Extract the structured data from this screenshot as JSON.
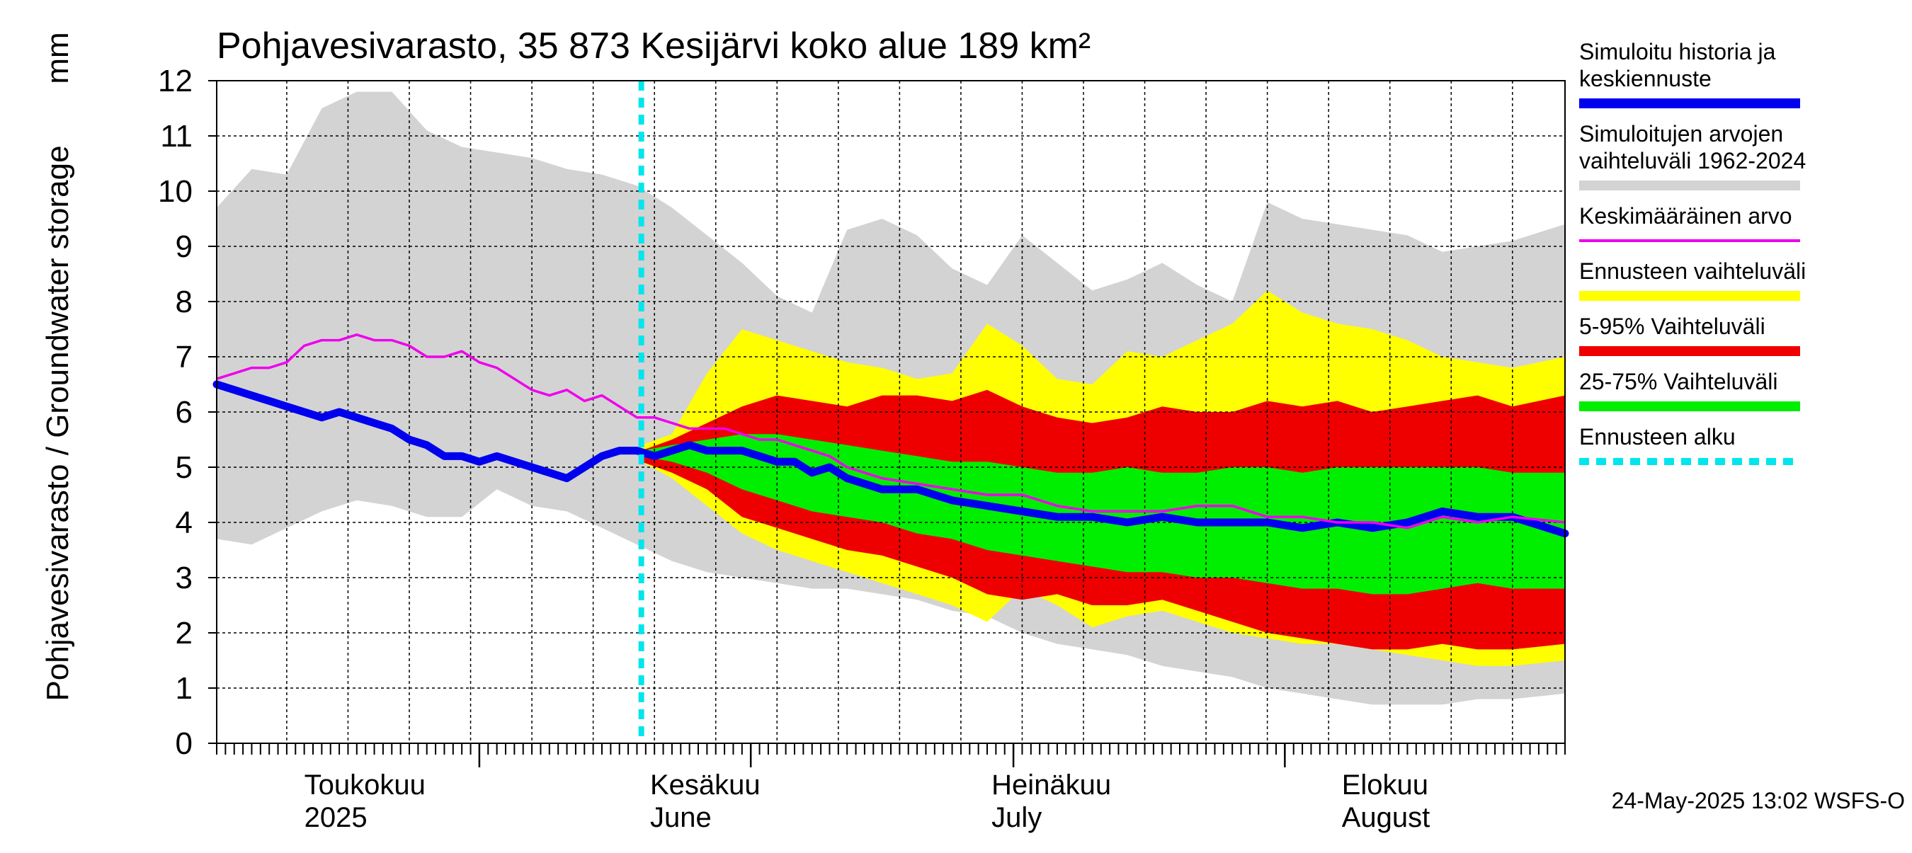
{
  "chart_data": {
    "type": "area",
    "title": "Pohjavesivarasto, 35 873 Kesijärvi koko alue 189 km²",
    "ylabel": "Pohjavesivarasto / Groundwater storage",
    "yunit": "mm",
    "ylim": [
      0,
      12
    ],
    "yticks": [
      0,
      1,
      2,
      3,
      4,
      5,
      6,
      7,
      8,
      9,
      10,
      11,
      12
    ],
    "x_start": "2025-04-01",
    "x_days": 154,
    "forecast_start_day": 48.5,
    "month_ticks_day": [
      30,
      61,
      91,
      122
    ],
    "week_grid_days": [
      0,
      8,
      15,
      22,
      29,
      36,
      43,
      50,
      57,
      64,
      71,
      78,
      85,
      92,
      99,
      106,
      113,
      120,
      127,
      134,
      141,
      148
    ],
    "month_labels": [
      {
        "fi": "Toukokuu",
        "en": "2025",
        "day": 10
      },
      {
        "fi": "Kesäkuu",
        "en": "June",
        "day": 49.5
      },
      {
        "fi": "Heinäkuu",
        "en": "July",
        "day": 88.5
      },
      {
        "fi": "Elokuu",
        "en": "August",
        "day": 128.5
      }
    ],
    "footer": "24-May-2025 13:02 WSFS-O",
    "colors": {
      "history": "#0000ee",
      "range_hist": "#d3d3d3",
      "mean": "#ee00ee",
      "forecast_range": "#ffff00",
      "p5_95": "#ee0000",
      "p25_75": "#00ee00",
      "forecast_start": "#00e5ee"
    },
    "legend": [
      {
        "label": "Simuloitu historia ja keskiennuste",
        "lines": [
          "Simuloitu historia ja",
          "keskiennuste"
        ],
        "color": "#0000ee",
        "style": "thick"
      },
      {
        "label": "Simuloitujen arvojen vaihteluväli 1962-2024",
        "lines": [
          "Simuloitujen arvojen",
          "vaihteluväli 1962-2024"
        ],
        "color": "#d3d3d3",
        "style": "thick"
      },
      {
        "label": "Keskimääräinen arvo",
        "lines": [
          "Keskimääräinen arvo"
        ],
        "color": "#ee00ee",
        "style": "thin"
      },
      {
        "label": "Ennusteen vaihteluväli",
        "lines": [
          "Ennusteen vaihteluväli"
        ],
        "color": "#ffff00",
        "style": "thick"
      },
      {
        "label": "5-95% Vaihteluväli",
        "lines": [
          "5-95% Vaihteluväli"
        ],
        "color": "#ee0000",
        "style": "thick"
      },
      {
        "label": "25-75% Vaihteluväli",
        "lines": [
          "25-75% Vaihteluväli"
        ],
        "color": "#00ee00",
        "style": "thick"
      },
      {
        "label": "Ennusteen alku",
        "lines": [
          "Ennusteen alku"
        ],
        "color": "#00e5ee",
        "style": "dashed"
      }
    ],
    "series": {
      "hist_range": {
        "x": [
          0,
          4,
          8,
          12,
          16,
          20,
          24,
          28,
          32,
          36,
          40,
          44,
          48,
          52,
          56,
          60,
          64,
          68,
          72,
          76,
          80,
          84,
          88,
          92,
          96,
          100,
          104,
          108,
          112,
          116,
          120,
          124,
          128,
          132,
          136,
          140,
          144,
          148,
          154
        ],
        "upper": [
          9.7,
          10.4,
          10.3,
          11.5,
          11.8,
          11.8,
          11.1,
          10.8,
          10.7,
          10.6,
          10.4,
          10.3,
          10.1,
          9.7,
          9.2,
          8.7,
          8.1,
          7.8,
          9.3,
          9.5,
          9.2,
          8.6,
          8.3,
          9.2,
          8.7,
          8.2,
          8.4,
          8.7,
          8.3,
          8.0,
          9.8,
          9.5,
          9.4,
          9.3,
          9.2,
          8.9,
          9.0,
          9.1,
          9.4
        ],
        "lower": [
          3.7,
          3.6,
          3.9,
          4.2,
          4.4,
          4.3,
          4.1,
          4.1,
          4.6,
          4.3,
          4.2,
          3.9,
          3.6,
          3.3,
          3.1,
          3.0,
          2.9,
          2.8,
          2.8,
          2.7,
          2.6,
          2.4,
          2.3,
          2.0,
          1.8,
          1.7,
          1.6,
          1.4,
          1.3,
          1.2,
          1.0,
          0.9,
          0.8,
          0.7,
          0.7,
          0.7,
          0.8,
          0.8,
          0.9
        ]
      },
      "forecast_range": {
        "x": [
          48.5,
          52,
          56,
          60,
          64,
          68,
          72,
          76,
          80,
          84,
          88,
          92,
          96,
          100,
          104,
          108,
          112,
          116,
          120,
          124,
          128,
          132,
          136,
          140,
          144,
          148,
          154
        ],
        "upper": [
          5.4,
          5.6,
          6.7,
          7.5,
          7.3,
          7.1,
          6.9,
          6.8,
          6.6,
          6.7,
          7.6,
          7.2,
          6.6,
          6.5,
          7.1,
          7.0,
          7.3,
          7.6,
          8.2,
          7.8,
          7.6,
          7.5,
          7.3,
          7.0,
          6.9,
          6.8,
          7.0
        ],
        "lower": [
          5.1,
          4.8,
          4.3,
          3.8,
          3.5,
          3.3,
          3.1,
          2.9,
          2.7,
          2.5,
          2.2,
          2.8,
          2.5,
          2.1,
          2.3,
          2.4,
          2.2,
          2.0,
          1.9,
          1.8,
          1.8,
          1.7,
          1.6,
          1.5,
          1.4,
          1.4,
          1.5
        ]
      },
      "p5_95": {
        "x": [
          48.5,
          52,
          56,
          60,
          64,
          68,
          72,
          76,
          80,
          84,
          88,
          92,
          96,
          100,
          104,
          108,
          112,
          116,
          120,
          124,
          128,
          132,
          136,
          140,
          144,
          148,
          154
        ],
        "upper": [
          5.3,
          5.5,
          5.8,
          6.1,
          6.3,
          6.2,
          6.1,
          6.3,
          6.3,
          6.2,
          6.4,
          6.1,
          5.9,
          5.8,
          5.9,
          6.1,
          6.0,
          6.0,
          6.2,
          6.1,
          6.2,
          6.0,
          6.1,
          6.2,
          6.3,
          6.1,
          6.3
        ],
        "lower": [
          5.1,
          4.9,
          4.6,
          4.1,
          3.9,
          3.7,
          3.5,
          3.4,
          3.2,
          3.0,
          2.7,
          2.6,
          2.7,
          2.5,
          2.5,
          2.6,
          2.4,
          2.2,
          2.0,
          1.9,
          1.8,
          1.7,
          1.7,
          1.8,
          1.7,
          1.7,
          1.8
        ]
      },
      "p25_75": {
        "x": [
          48.5,
          52,
          56,
          60,
          64,
          68,
          72,
          76,
          80,
          84,
          88,
          92,
          96,
          100,
          104,
          108,
          112,
          116,
          120,
          124,
          128,
          132,
          136,
          140,
          144,
          148,
          154
        ],
        "upper": [
          5.3,
          5.4,
          5.5,
          5.6,
          5.6,
          5.5,
          5.4,
          5.3,
          5.2,
          5.1,
          5.1,
          5.0,
          4.9,
          4.9,
          5.0,
          4.9,
          4.9,
          5.0,
          5.0,
          4.9,
          5.0,
          5.0,
          5.0,
          5.0,
          5.0,
          4.9,
          4.9
        ],
        "lower": [
          5.2,
          5.1,
          4.9,
          4.6,
          4.4,
          4.2,
          4.1,
          4.0,
          3.8,
          3.7,
          3.5,
          3.4,
          3.3,
          3.2,
          3.1,
          3.1,
          3.0,
          3.0,
          2.9,
          2.8,
          2.8,
          2.7,
          2.7,
          2.8,
          2.9,
          2.8,
          2.8
        ]
      },
      "mean": {
        "x": [
          0,
          2,
          4,
          6,
          8,
          10,
          12,
          14,
          16,
          18,
          20,
          22,
          24,
          26,
          28,
          30,
          32,
          34,
          36,
          38,
          40,
          42,
          44,
          46,
          48,
          50,
          52,
          54,
          56,
          58,
          60,
          62,
          64,
          66,
          68,
          70,
          72,
          76,
          80,
          84,
          88,
          92,
          96,
          100,
          104,
          108,
          112,
          116,
          120,
          124,
          128,
          132,
          136,
          140,
          144,
          148,
          154
        ],
        "y": [
          6.6,
          6.7,
          6.8,
          6.8,
          6.9,
          7.2,
          7.3,
          7.3,
          7.4,
          7.3,
          7.3,
          7.2,
          7.0,
          7.0,
          7.1,
          6.9,
          6.8,
          6.6,
          6.4,
          6.3,
          6.4,
          6.2,
          6.3,
          6.1,
          5.9,
          5.9,
          5.8,
          5.7,
          5.7,
          5.7,
          5.6,
          5.5,
          5.5,
          5.4,
          5.3,
          5.2,
          5.0,
          4.8,
          4.7,
          4.6,
          4.5,
          4.5,
          4.3,
          4.2,
          4.2,
          4.2,
          4.3,
          4.3,
          4.1,
          4.1,
          4.0,
          4.0,
          3.9,
          4.1,
          4.0,
          4.1,
          4.0
        ]
      },
      "history": {
        "x": [
          0,
          2,
          4,
          6,
          8,
          10,
          12,
          14,
          16,
          18,
          20,
          22,
          24,
          26,
          28,
          30,
          32,
          34,
          36,
          38,
          40,
          42,
          44,
          46,
          48,
          50,
          52,
          54,
          56,
          58,
          60,
          62,
          64,
          66,
          68,
          70,
          72,
          76,
          80,
          84,
          88,
          92,
          96,
          100,
          104,
          108,
          112,
          116,
          120,
          124,
          128,
          132,
          136,
          140,
          144,
          148,
          154
        ],
        "y": [
          6.5,
          6.4,
          6.3,
          6.2,
          6.1,
          6.0,
          5.9,
          6.0,
          5.9,
          5.8,
          5.7,
          5.5,
          5.4,
          5.2,
          5.2,
          5.1,
          5.2,
          5.1,
          5.0,
          4.9,
          4.8,
          5.0,
          5.2,
          5.3,
          5.3,
          5.2,
          5.3,
          5.4,
          5.3,
          5.3,
          5.3,
          5.2,
          5.1,
          5.1,
          4.9,
          5.0,
          4.8,
          4.6,
          4.6,
          4.4,
          4.3,
          4.2,
          4.1,
          4.1,
          4.0,
          4.1,
          4.0,
          4.0,
          4.0,
          3.9,
          4.0,
          3.9,
          4.0,
          4.2,
          4.1,
          4.1,
          3.8
        ]
      }
    }
  }
}
